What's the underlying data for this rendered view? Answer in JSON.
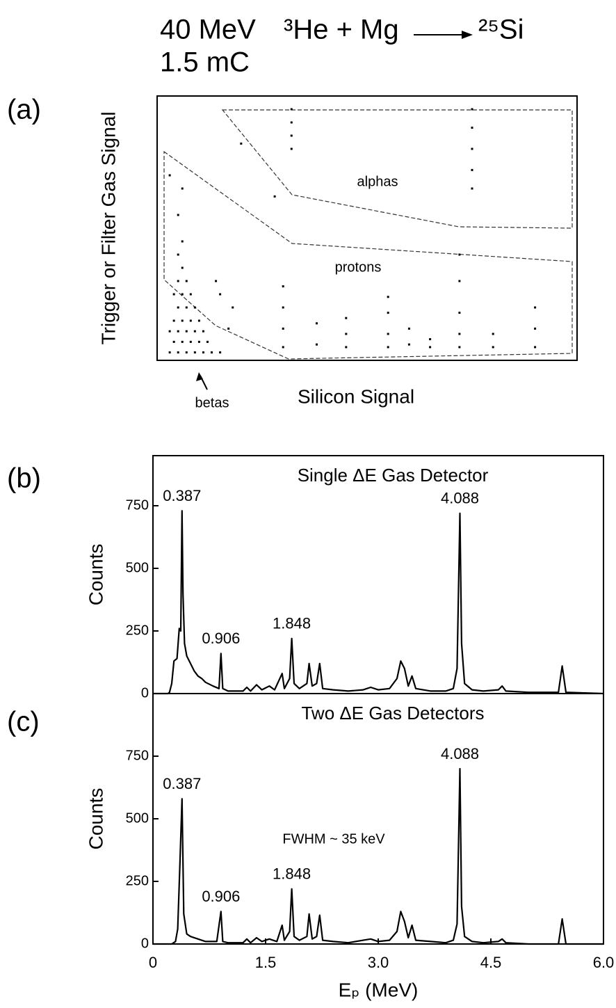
{
  "title": {
    "energy": "40 MeV",
    "reaction": "³He + Mg",
    "product": "²⁵Si",
    "charge": "1.5 mC"
  },
  "chart_data": [
    {
      "type": "scatter",
      "panel_label": "(a)",
      "x_label": "Silicon Signal",
      "y_label": "Trigger or Filter  Gas Signal",
      "annotations": [
        "alphas",
        "protons",
        "betas"
      ],
      "xlim": [
        0,
        100
      ],
      "ylim": [
        0,
        100
      ],
      "color": "#000000",
      "x": [
        3,
        5,
        7,
        9,
        11,
        13,
        15,
        4,
        6,
        8,
        10,
        12,
        3,
        5,
        7,
        9,
        11,
        4,
        6,
        8,
        10,
        5,
        7,
        9,
        4,
        6,
        8,
        5,
        7,
        6,
        5,
        6,
        5,
        6,
        3,
        17,
        18,
        15,
        14,
        30,
        30,
        30,
        30,
        45,
        45,
        45,
        55,
        55,
        55,
        55,
        60,
        60,
        72,
        72,
        72,
        72,
        72,
        80,
        80,
        90,
        90,
        90,
        38,
        38,
        65,
        65,
        32,
        32,
        32,
        32,
        75,
        75,
        75,
        75,
        75,
        20,
        28
      ],
      "y": [
        3,
        3,
        3,
        3,
        3,
        3,
        3,
        7,
        7,
        7,
        7,
        7,
        11,
        11,
        11,
        11,
        11,
        15,
        15,
        15,
        15,
        20,
        20,
        20,
        25,
        25,
        25,
        30,
        30,
        35,
        40,
        45,
        55,
        65,
        70,
        12,
        20,
        25,
        30,
        5,
        12,
        20,
        28,
        5,
        10,
        16,
        5,
        10,
        18,
        24,
        6,
        12,
        5,
        10,
        18,
        30,
        40,
        5,
        10,
        5,
        12,
        20,
        6,
        14,
        5,
        8,
        95,
        90,
        85,
        80,
        95,
        88,
        80,
        72,
        65,
        82,
        62
      ]
    },
    {
      "type": "line",
      "panel_label": "(b)",
      "title": "Single ΔE Gas Detector",
      "y_label": "Counts",
      "color": "#000000",
      "xlim": [
        0,
        6
      ],
      "ylim": [
        0,
        950
      ],
      "yticks": [
        0,
        250,
        500,
        750
      ],
      "peak_labels": [
        0.387,
        0.906,
        1.848,
        4.088
      ],
      "x": [
        0,
        0.2,
        0.22,
        0.25,
        0.28,
        0.32,
        0.35,
        0.37,
        0.387,
        0.4,
        0.42,
        0.45,
        0.5,
        0.55,
        0.6,
        0.65,
        0.7,
        0.8,
        0.88,
        0.906,
        0.93,
        1.0,
        1.2,
        1.25,
        1.3,
        1.38,
        1.45,
        1.55,
        1.62,
        1.72,
        1.75,
        1.82,
        1.848,
        1.88,
        1.95,
        2.05,
        2.08,
        2.12,
        2.18,
        2.22,
        2.26,
        2.4,
        2.6,
        2.8,
        2.9,
        3.0,
        3.15,
        3.25,
        3.3,
        3.35,
        3.4,
        3.45,
        3.5,
        3.7,
        3.9,
        4.0,
        4.05,
        4.088,
        4.11,
        4.15,
        4.25,
        4.4,
        4.6,
        4.65,
        4.7,
        5.0,
        5.4,
        5.45,
        5.5,
        6.0
      ],
      "values": [
        0,
        0,
        5,
        40,
        130,
        140,
        260,
        250,
        730,
        400,
        200,
        150,
        120,
        90,
        70,
        60,
        45,
        30,
        20,
        160,
        20,
        10,
        10,
        25,
        10,
        35,
        15,
        30,
        15,
        80,
        20,
        60,
        220,
        40,
        20,
        40,
        120,
        30,
        40,
        120,
        20,
        15,
        10,
        15,
        25,
        15,
        20,
        60,
        130,
        100,
        30,
        70,
        20,
        10,
        10,
        20,
        100,
        720,
        200,
        40,
        15,
        10,
        15,
        30,
        10,
        5,
        5,
        110,
        5,
        0
      ]
    },
    {
      "type": "line",
      "panel_label": "(c)",
      "title": "Two ΔE Gas Detectors",
      "y_label": "Counts",
      "x_label": "Eₚ (MeV)",
      "annotations": [
        "FWHM ~ 35 keV"
      ],
      "color": "#000000",
      "xlim": [
        0,
        6
      ],
      "ylim": [
        0,
        1000
      ],
      "yticks": [
        0,
        250,
        500,
        750
      ],
      "xticks": [
        0,
        1.5,
        {
          "value": 3,
          "label": "3.0"
        },
        4.5,
        {
          "value": 6,
          "label": "6.0"
        }
      ],
      "peak_labels": [
        0.387,
        0.906,
        1.848,
        4.088
      ],
      "x": [
        0,
        0.25,
        0.3,
        0.33,
        0.36,
        0.387,
        0.41,
        0.45,
        0.5,
        0.6,
        0.7,
        0.85,
        0.906,
        0.93,
        1.0,
        1.2,
        1.25,
        1.3,
        1.38,
        1.45,
        1.55,
        1.65,
        1.72,
        1.75,
        1.82,
        1.848,
        1.88,
        1.95,
        2.05,
        2.08,
        2.12,
        2.18,
        2.22,
        2.26,
        2.4,
        2.6,
        2.8,
        2.9,
        3.0,
        3.15,
        3.25,
        3.3,
        3.35,
        3.4,
        3.45,
        3.5,
        3.7,
        3.9,
        4.0,
        4.05,
        4.088,
        4.11,
        4.15,
        4.25,
        4.4,
        4.6,
        4.65,
        4.7,
        5.0,
        5.4,
        5.45,
        5.5,
        6.0
      ],
      "values": [
        0,
        0,
        10,
        60,
        330,
        580,
        120,
        40,
        30,
        20,
        10,
        10,
        130,
        10,
        5,
        5,
        20,
        5,
        25,
        10,
        20,
        10,
        75,
        15,
        50,
        220,
        30,
        15,
        30,
        120,
        20,
        30,
        115,
        15,
        10,
        5,
        15,
        20,
        10,
        15,
        50,
        130,
        90,
        25,
        75,
        15,
        10,
        5,
        15,
        80,
        700,
        150,
        30,
        10,
        5,
        10,
        20,
        5,
        0,
        0,
        100,
        0,
        0
      ]
    }
  ]
}
